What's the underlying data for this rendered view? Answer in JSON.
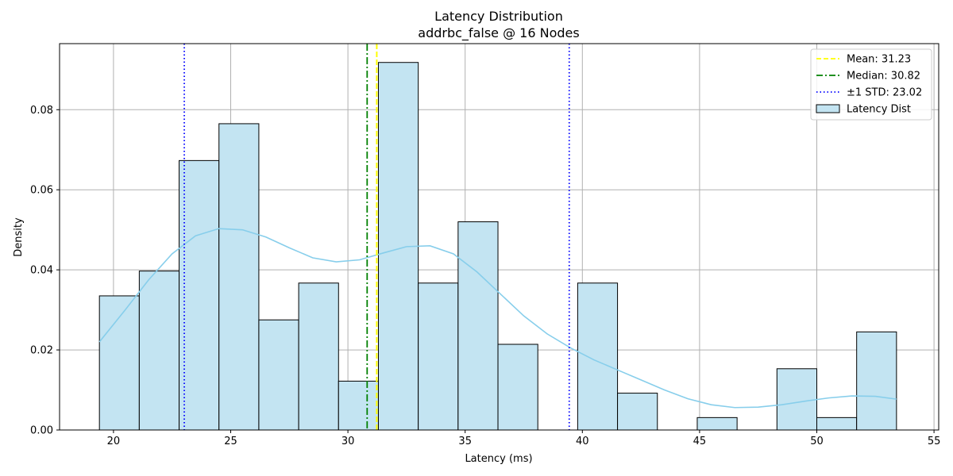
{
  "chart_data": {
    "type": "bar",
    "title": "Latency Distribution",
    "subtitle": "addrbc_false @ 16 Nodes",
    "xlabel": "Latency (ms)",
    "ylabel": "Density",
    "xlim": [
      17.7,
      55.2
    ],
    "ylim": [
      0,
      0.0965
    ],
    "xticks": [
      20,
      25,
      30,
      35,
      40,
      45,
      50,
      55
    ],
    "yticks": [
      0.0,
      0.02,
      0.04,
      0.06,
      0.08
    ],
    "ytick_labels": [
      "0.00",
      "0.02",
      "0.04",
      "0.06",
      "0.08"
    ],
    "grid": true,
    "legend_position": "top-right",
    "bins": [
      {
        "x0": 19.4,
        "x1": 21.1,
        "density": 0.0335
      },
      {
        "x0": 21.1,
        "x1": 22.8,
        "density": 0.0397
      },
      {
        "x0": 22.8,
        "x1": 24.5,
        "density": 0.0673
      },
      {
        "x0": 24.5,
        "x1": 26.2,
        "density": 0.0765
      },
      {
        "x0": 26.2,
        "x1": 27.9,
        "density": 0.0275
      },
      {
        "x0": 27.9,
        "x1": 29.6,
        "density": 0.0367
      },
      {
        "x0": 29.6,
        "x1": 31.3,
        "density": 0.0122
      },
      {
        "x0": 31.3,
        "x1": 33.0,
        "density": 0.0918
      },
      {
        "x0": 33.0,
        "x1": 34.7,
        "density": 0.0367
      },
      {
        "x0": 34.7,
        "x1": 36.4,
        "density": 0.052
      },
      {
        "x0": 36.4,
        "x1": 38.1,
        "density": 0.0214
      },
      {
        "x0": 38.1,
        "x1": 39.8,
        "density": 0.0
      },
      {
        "x0": 39.8,
        "x1": 41.5,
        "density": 0.0367
      },
      {
        "x0": 41.5,
        "x1": 43.2,
        "density": 0.0092
      },
      {
        "x0": 43.2,
        "x1": 44.9,
        "density": 0.0
      },
      {
        "x0": 44.9,
        "x1": 46.6,
        "density": 0.0031
      },
      {
        "x0": 46.6,
        "x1": 48.3,
        "density": 0.0
      },
      {
        "x0": 48.3,
        "x1": 50.0,
        "density": 0.0153
      },
      {
        "x0": 50.0,
        "x1": 51.7,
        "density": 0.0031
      },
      {
        "x0": 51.7,
        "x1": 53.4,
        "density": 0.0245
      }
    ],
    "kde": {
      "x": [
        19.4,
        20.5,
        21.5,
        22.5,
        23.5,
        24.5,
        25.5,
        26.5,
        27.5,
        28.5,
        29.5,
        30.5,
        31.5,
        32.5,
        33.5,
        34.5,
        35.5,
        36.5,
        37.5,
        38.5,
        39.5,
        40.5,
        41.5,
        42.5,
        43.5,
        44.5,
        45.5,
        46.5,
        47.5,
        48.5,
        49.5,
        50.5,
        51.5,
        52.5,
        53.4
      ],
      "y": [
        0.022,
        0.03,
        0.0375,
        0.044,
        0.0485,
        0.0503,
        0.05,
        0.0482,
        0.0455,
        0.043,
        0.042,
        0.0425,
        0.0442,
        0.0458,
        0.046,
        0.044,
        0.0395,
        0.034,
        0.0285,
        0.024,
        0.0205,
        0.0175,
        0.015,
        0.0125,
        0.01,
        0.0078,
        0.0063,
        0.0056,
        0.0057,
        0.0063,
        0.0072,
        0.008,
        0.0085,
        0.0084,
        0.0077
      ]
    },
    "mean": 31.23,
    "median": 30.82,
    "std_lines": [
      23.02,
      39.44
    ],
    "legend": [
      {
        "label": "Mean: 31.23",
        "style": "dashed",
        "color": "#ffff00"
      },
      {
        "label": "Median: 30.82",
        "style": "dashdot",
        "color": "#008000"
      },
      {
        "label": "±1 STD: 23.02",
        "style": "dotted",
        "color": "#0000ff"
      },
      {
        "label": "Latency Dist",
        "style": "patch",
        "color": "#c3e4f2"
      }
    ],
    "colors": {
      "bar_fill": "#c3e4f2",
      "bar_edge": "#000000",
      "kde": "#87ceeb",
      "mean": "#ffff00",
      "median": "#008000",
      "std": "#0000ff",
      "grid": "#b0b0b0"
    }
  }
}
